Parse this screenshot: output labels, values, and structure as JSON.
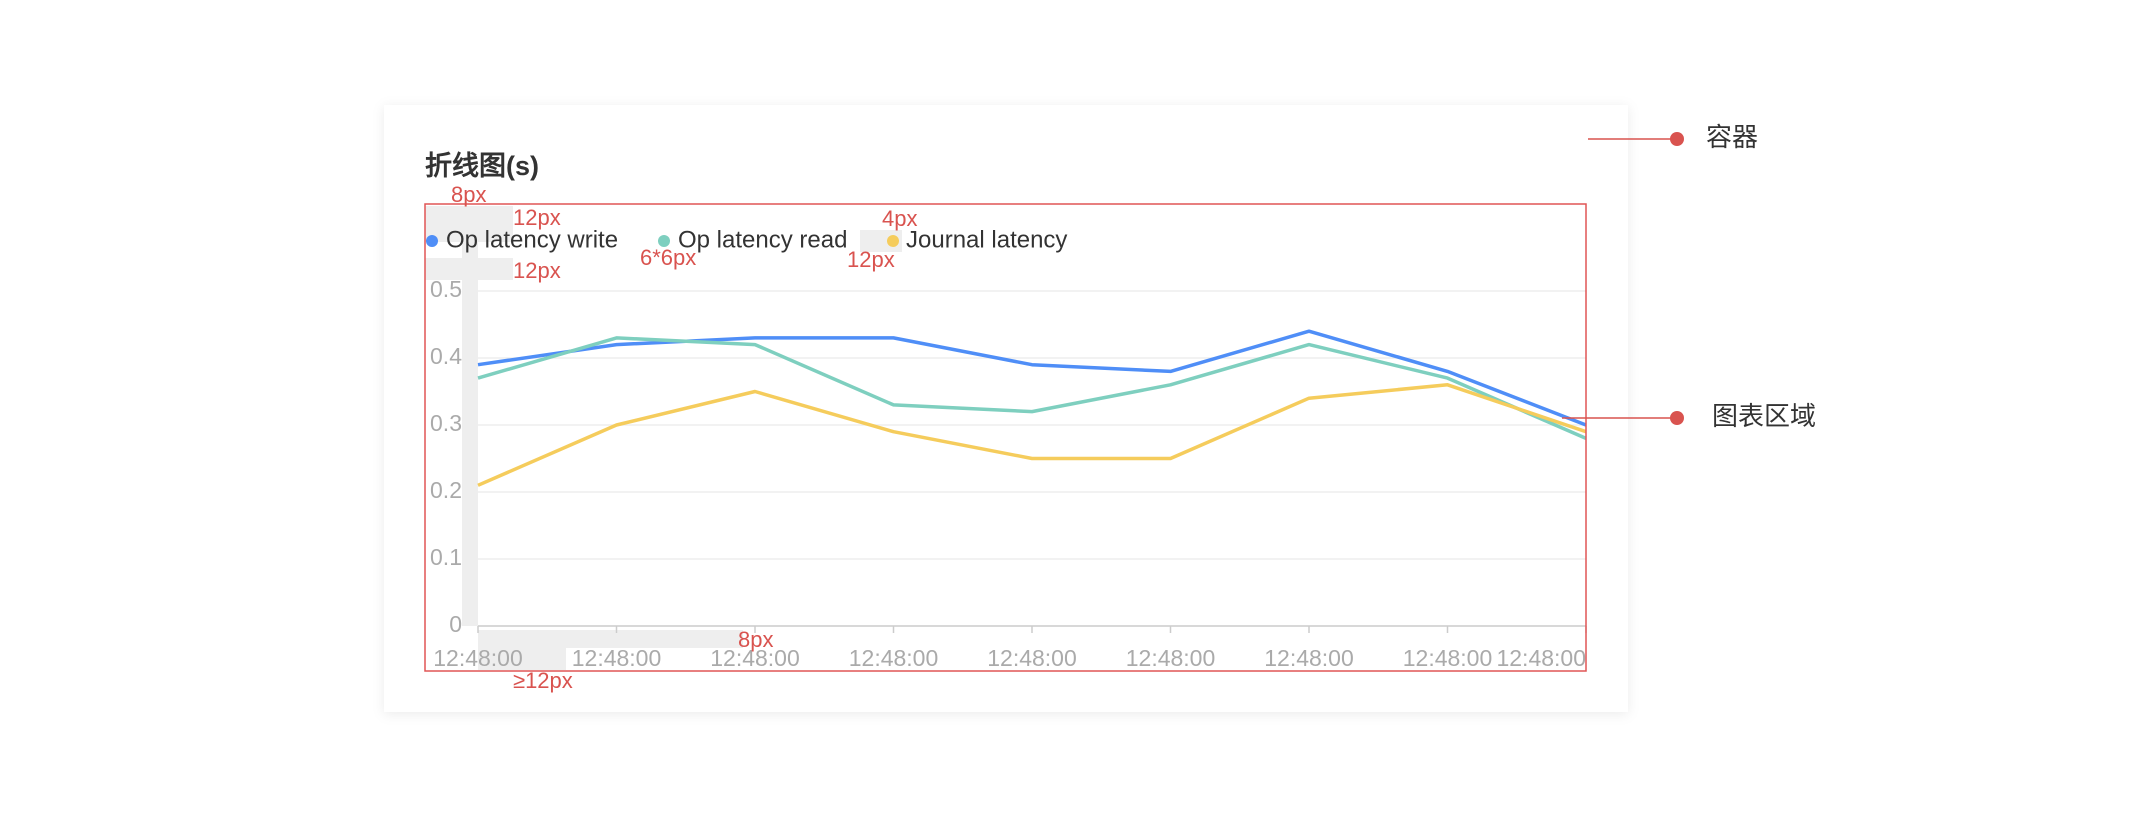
{
  "chart_data": {
    "type": "line",
    "title": "折线图(s)",
    "categories": [
      "12:48:00",
      "12:48:00",
      "12:48:00",
      "12:48:00",
      "12:48:00",
      "12:48:00",
      "12:48:00",
      "12:48:00",
      "12:48:00"
    ],
    "series": [
      {
        "name": "Op latency write",
        "color": "#4f8ef7",
        "values": [
          0.39,
          0.42,
          0.43,
          0.43,
          0.39,
          0.38,
          0.44,
          0.38,
          0.3
        ]
      },
      {
        "name": "Op latency read",
        "color": "#7ecfbf",
        "values": [
          0.37,
          0.43,
          0.42,
          0.33,
          0.32,
          0.36,
          0.42,
          0.37,
          0.28
        ]
      },
      {
        "name": "Journal latency",
        "color": "#f5cc5c",
        "values": [
          0.21,
          0.3,
          0.35,
          0.29,
          0.25,
          0.25,
          0.34,
          0.36,
          0.29
        ]
      }
    ],
    "ylim": [
      0,
      0.5
    ],
    "yticks": [
      0,
      0.1,
      0.2,
      0.3,
      0.4,
      0.5
    ],
    "grid": true
  },
  "annotations": [
    "8px",
    "12px",
    "12px",
    "6*6px",
    "4px",
    "12px",
    "8px",
    "≥12px"
  ],
  "callouts": [
    "容器",
    "图表区域"
  ]
}
